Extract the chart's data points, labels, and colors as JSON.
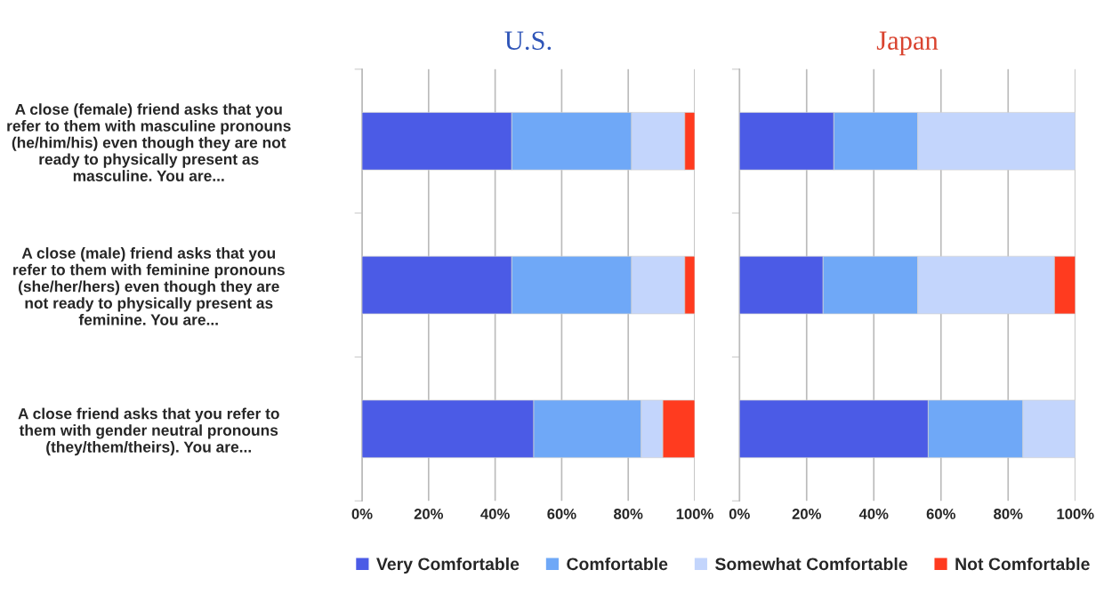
{
  "chart_data": [
    {
      "type": "bar",
      "orientation": "horizontal",
      "stacked": true,
      "title": "U.S.",
      "categories": [
        "A close (female) friend asks that you\nrefer to them with masculine pronouns\n(he/him/his) even though they are not\nready to physically present as\nmasculine. You are...",
        "A close (male) friend asks that you\nrefer to them with feminine pronouns\n(she/her/hers) even though they are\nnot ready to physically present as\nfeminine. You are...",
        "A close friend asks that you refer to\nthem with gender neutral pronouns\n(they/them/theirs). You are..."
      ],
      "series": [
        {
          "name": "Very Comfortable",
          "color": "#4b5be6",
          "values": [
            45,
            45,
            51.6
          ]
        },
        {
          "name": "Comfortable",
          "color": "#6fa8f7",
          "values": [
            36,
            36,
            32.3
          ]
        },
        {
          "name": "Somewhat Comfortable",
          "color": "#c3d5fc",
          "values": [
            16,
            16,
            6.5
          ]
        },
        {
          "name": "Not Comfortable",
          "color": "#ff3b1f",
          "values": [
            3,
            3,
            9.6
          ]
        }
      ],
      "xlim": [
        0,
        100
      ],
      "xticks": [
        {
          "value": 0,
          "label": "0%"
        },
        {
          "value": 20,
          "label": "20%"
        },
        {
          "value": 40,
          "label": "40%"
        },
        {
          "value": 60,
          "label": "60%"
        },
        {
          "value": 80,
          "label": "80%"
        },
        {
          "value": 100,
          "label": "100%"
        }
      ],
      "grid": "x",
      "legend": "bottom"
    },
    {
      "type": "bar",
      "orientation": "horizontal",
      "stacked": true,
      "title": "Japan",
      "categories": [
        null,
        null,
        null
      ],
      "series": [
        {
          "color": "#4b5be6",
          "values": [
            28.1,
            24.9,
            56.2
          ]
        },
        {
          "color": "#6fa8f7",
          "values": [
            25,
            28.2,
            28.2
          ]
        },
        {
          "color": "#c3d5fc",
          "values": [
            46.9,
            40.7,
            15.6
          ]
        },
        {
          "color": "#ff3b1f",
          "values": [
            null,
            6.2,
            null
          ]
        }
      ],
      "xlim": [
        0,
        100
      ],
      "xticks": [
        {
          "value": 0,
          "label": "0%"
        },
        {
          "value": 20,
          "label": "20%"
        },
        {
          "value": 40,
          "label": "40%"
        },
        {
          "value": 60,
          "label": "60%"
        },
        {
          "value": 80,
          "label": "80%"
        },
        {
          "value": 100,
          "label": "100%"
        }
      ],
      "grid": "x",
      "tick_labels": "x"
    }
  ]
}
